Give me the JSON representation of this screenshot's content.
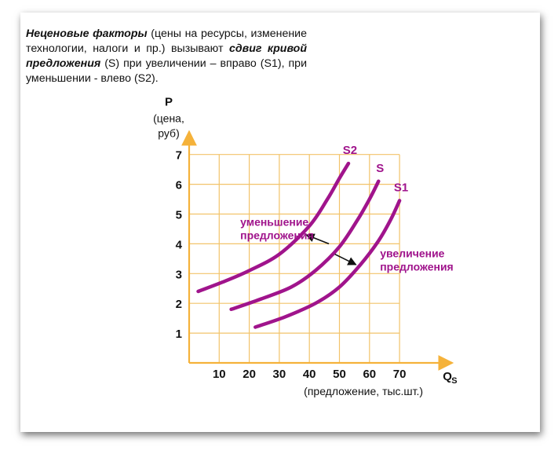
{
  "intro": {
    "lead_bold": "Неценовые факторы",
    "lead_rest": " (цены на ресурсы, изменение технологии, налоги и пр.) вызывают ",
    "mid_bold": "сдвиг кривой предложения",
    "tail": " (S) при увеличении – вправо (S1), при уменьшении - влево (S2)."
  },
  "chart_data": {
    "type": "line",
    "y_axis": {
      "label_main": "P",
      "label_sub_1": "(цена,",
      "label_sub_2": "руб)",
      "ticks": [
        1,
        2,
        3,
        4,
        5,
        6,
        7
      ],
      "ylim": [
        0,
        7.4
      ]
    },
    "x_axis": {
      "label_main": "Q",
      "label_sub": "S",
      "caption": "(предложение, тыс.шт.)",
      "ticks": [
        10,
        20,
        30,
        40,
        50,
        60,
        70
      ],
      "xlim": [
        0,
        87
      ]
    },
    "grid": true,
    "series": [
      {
        "name": "S2",
        "points": [
          [
            3,
            2.4
          ],
          [
            12,
            2.75
          ],
          [
            20,
            3.1
          ],
          [
            30,
            3.65
          ],
          [
            40,
            4.6
          ],
          [
            46,
            5.5
          ],
          [
            50,
            6.2
          ],
          [
            53,
            6.7
          ]
        ]
      },
      {
        "name": "S",
        "points": [
          [
            14,
            1.8
          ],
          [
            24,
            2.15
          ],
          [
            34,
            2.55
          ],
          [
            42,
            3.1
          ],
          [
            50,
            3.9
          ],
          [
            56,
            4.8
          ],
          [
            60,
            5.5
          ],
          [
            63,
            6.1
          ]
        ]
      },
      {
        "name": "S1",
        "points": [
          [
            22,
            1.2
          ],
          [
            32,
            1.55
          ],
          [
            42,
            2.0
          ],
          [
            50,
            2.55
          ],
          [
            57,
            3.3
          ],
          [
            63,
            4.1
          ],
          [
            67,
            4.8
          ],
          [
            70,
            5.45
          ]
        ]
      }
    ],
    "annotations": [
      {
        "text_1": "уменьшение",
        "text_2": "предложения",
        "x": 17,
        "y": 4.6
      },
      {
        "text_1": "увеличение",
        "text_2": "предложения",
        "x": 63.5,
        "y": 3.55
      }
    ],
    "arrows": [
      {
        "from": [
          46.5,
          4.0
        ],
        "to": [
          39,
          4.3
        ]
      },
      {
        "from": [
          48.5,
          3.65
        ],
        "to": [
          55.5,
          3.3
        ]
      }
    ],
    "colors": {
      "curve": "#a0148c",
      "grid": "#f2c36a",
      "axis": "#f5b23a",
      "arrow": "#111111",
      "text": "#111111"
    }
  }
}
